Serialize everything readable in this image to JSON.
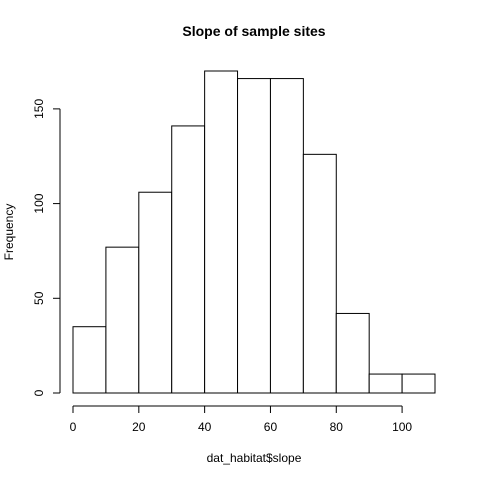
{
  "chart_data": {
    "type": "bar",
    "title": "Slope of sample sites",
    "xlabel": "dat_habitat$slope",
    "ylabel": "Frequency",
    "bins": [
      {
        "x0": 0,
        "x1": 10,
        "count": 35
      },
      {
        "x0": 10,
        "x1": 20,
        "count": 77
      },
      {
        "x0": 20,
        "x1": 30,
        "count": 106
      },
      {
        "x0": 30,
        "x1": 40,
        "count": 141
      },
      {
        "x0": 40,
        "x1": 50,
        "count": 170
      },
      {
        "x0": 50,
        "x1": 60,
        "count": 166
      },
      {
        "x0": 60,
        "x1": 70,
        "count": 166
      },
      {
        "x0": 70,
        "x1": 80,
        "count": 126
      },
      {
        "x0": 80,
        "x1": 90,
        "count": 42
      },
      {
        "x0": 90,
        "x1": 100,
        "count": 10
      },
      {
        "x0": 100,
        "x1": 110,
        "count": 10
      }
    ],
    "xlim": [
      0,
      110
    ],
    "ylim": [
      0,
      170
    ],
    "x_ticks": [
      0,
      20,
      40,
      60,
      80,
      100
    ],
    "y_ticks": [
      0,
      50,
      100,
      150
    ],
    "grid": false,
    "bar_fill": "#ffffff",
    "bar_stroke": "#000000"
  }
}
